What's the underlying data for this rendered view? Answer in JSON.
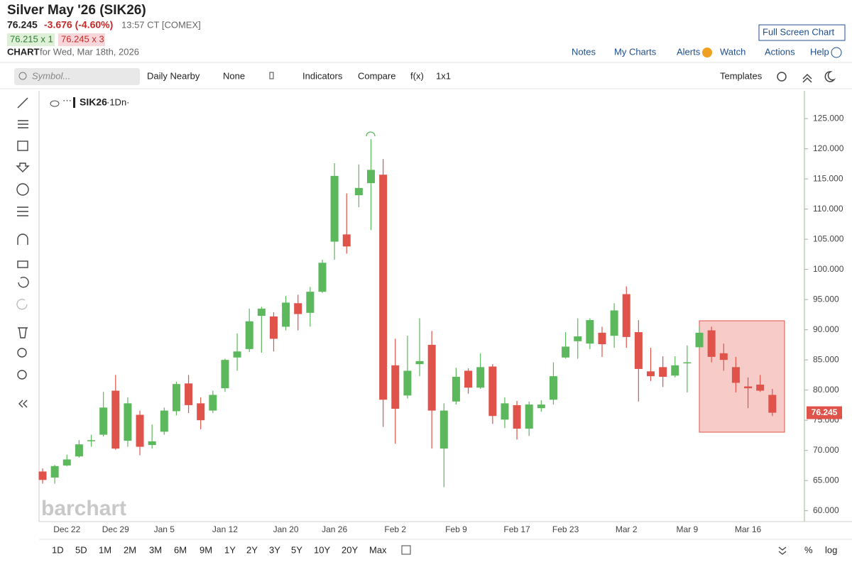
{
  "header": {
    "title": "Silver May '26 (SIK26)",
    "last": "76.245",
    "change": "-3.676 (-4.60%)",
    "time": "13:57 CT [COMEX]",
    "bid": "76.215 x 1",
    "ask": "76.245 x 3",
    "chart_label": "CHART",
    "chart_date": "for Wed, Mar 18th, 2026",
    "full_screen": "Full Screen Chart",
    "links": [
      "Notes",
      "My Charts",
      "Alerts",
      "Watch",
      "Actions",
      "Help"
    ]
  },
  "toolbar": {
    "symbol_placeholder": "Symbol...",
    "items": [
      "Daily Nearby",
      "None",
      "Indicators",
      "Compare",
      "f(x)",
      "1x1"
    ],
    "templates": "Templates"
  },
  "legend": {
    "symbol": "SIK26",
    "interval": "·1Dn·"
  },
  "watermark": "barchart",
  "periods": [
    "1D",
    "5D",
    "1M",
    "2M",
    "3M",
    "6M",
    "9M",
    "1Y",
    "2Y",
    "3Y",
    "5Y",
    "10Y",
    "20Y",
    "Max"
  ],
  "scale_options": [
    "%",
    "log"
  ],
  "chart_data": {
    "type": "candlestick",
    "categories": [
      null,
      null,
      "Dec 22",
      null,
      null,
      null,
      "Dec 29",
      null,
      null,
      null,
      "Jan 5",
      null,
      null,
      null,
      null,
      "Jan 12",
      null,
      null,
      null,
      null,
      "Jan 20",
      null,
      null,
      null,
      "Jan 26",
      null,
      null,
      null,
      null,
      "Feb 2",
      null,
      null,
      null,
      null,
      "Feb 9",
      null,
      null,
      null,
      null,
      "Feb 17",
      null,
      null,
      null,
      "Feb 23",
      null,
      null,
      null,
      null,
      "Mar 2",
      null,
      null,
      null,
      null,
      "Mar 9",
      null,
      null,
      null,
      null,
      "Mar 16",
      null,
      null
    ],
    "open": [
      66.5,
      65.5,
      67.5,
      69.0,
      71.6,
      72.6,
      79.9,
      71.6,
      75.9,
      70.9,
      73.1,
      76.5,
      81.1,
      77.8,
      76.6,
      80.3,
      85.4,
      86.8,
      92.3,
      92.2,
      90.5,
      94.4,
      92.8,
      96.3,
      104.6,
      105.8,
      112.3,
      114.3,
      115.7,
      84.1,
      79.1,
      84.3,
      87.5,
      70.3,
      78.1,
      83.2,
      80.4,
      83.9,
      75.1,
      77.5,
      73.6,
      77.0,
      78.4,
      85.4,
      88.1,
      87.7,
      89.5,
      89.0,
      95.9,
      89.6,
      83.1,
      83.8,
      82.4,
      84.5,
      87.1,
      89.9,
      86.1,
      83.8,
      80.6,
      80.9,
      79.2
    ],
    "high": [
      67.0,
      67.6,
      69.3,
      71.7,
      72.6,
      79.7,
      82.5,
      78.8,
      76.6,
      74.3,
      77.1,
      81.4,
      82.5,
      78.8,
      79.9,
      85.2,
      89.4,
      93.5,
      93.8,
      92.9,
      95.6,
      95.8,
      97.1,
      101.6,
      117.6,
      112.6,
      117.4,
      121.6,
      118.3,
      88.5,
      89.0,
      91.9,
      89.8,
      77.8,
      83.7,
      83.6,
      86.1,
      84.3,
      78.8,
      78.2,
      78.1,
      78.3,
      84.6,
      89.6,
      91.9,
      91.9,
      90.5,
      94.4,
      97.2,
      91.6,
      87.0,
      85.6,
      85.6,
      87.4,
      90.5,
      90.5,
      87.7,
      85.5,
      82.1,
      82.5,
      80.2
    ],
    "low": [
      64.5,
      64.5,
      67.4,
      68.8,
      70.6,
      72.3,
      70.1,
      70.6,
      69.2,
      70.3,
      72.6,
      75.8,
      76.2,
      73.5,
      76.2,
      79.7,
      83.2,
      86.3,
      86.2,
      86.4,
      89.9,
      89.9,
      90.5,
      96.1,
      101.6,
      102.6,
      110.3,
      106.5,
      73.9,
      71.1,
      78.6,
      82.3,
      70.3,
      63.9,
      77.6,
      79.4,
      80.2,
      74.4,
      73.7,
      71.8,
      72.4,
      76.4,
      77.6,
      85.2,
      85.2,
      86.8,
      85.5,
      87.0,
      87.0,
      78.1,
      81.5,
      80.5,
      82.1,
      79.6,
      86.9,
      84.6,
      83.2,
      79.6,
      77.0,
      79.7,
      75.7
    ],
    "close": [
      65.1,
      67.4,
      68.5,
      71.0,
      71.7,
      77.1,
      70.3,
      77.8,
      70.6,
      71.5,
      76.6,
      81.0,
      77.5,
      75.0,
      79.2,
      85.0,
      86.4,
      91.4,
      93.5,
      88.5,
      94.5,
      92.6,
      96.3,
      101.1,
      115.5,
      103.8,
      113.5,
      116.5,
      78.4,
      76.9,
      83.2,
      84.8,
      76.6,
      76.6,
      82.2,
      80.4,
      83.8,
      75.7,
      77.8,
      73.6,
      77.6,
      77.6,
      82.3,
      87.2,
      88.9,
      91.6,
      87.6,
      93.2,
      88.8,
      83.5,
      82.3,
      82.2,
      84.1,
      84.6,
      89.5,
      85.5,
      85.0,
      81.2,
      80.3,
      79.9,
      76.245
    ],
    "up_color": "#5cb85c",
    "down_color": "#e0534a",
    "last_price": 76.245,
    "ylim": [
      58.2,
      129.6
    ],
    "yticks": [
      {
        "value": 60,
        "label": "60.000"
      },
      {
        "value": 65,
        "label": "65.000"
      },
      {
        "value": 70,
        "label": "70.000"
      },
      {
        "value": 75,
        "label": "75.000"
      },
      {
        "value": 80,
        "label": "80.000"
      },
      {
        "value": 85,
        "label": "85.000"
      },
      {
        "value": 90,
        "label": "90.000"
      },
      {
        "value": 95,
        "label": "95.000"
      },
      {
        "value": 100,
        "label": "100.000"
      },
      {
        "value": 105,
        "label": "105.000"
      },
      {
        "value": 110,
        "label": "110.000"
      },
      {
        "value": 115,
        "label": "115.000"
      },
      {
        "value": 120,
        "label": "120.000"
      },
      {
        "value": 125,
        "label": "125.000"
      }
    ]
  }
}
